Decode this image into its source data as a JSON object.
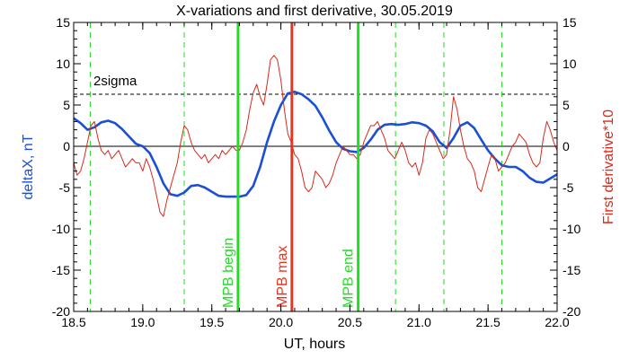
{
  "chart_data": {
    "type": "line",
    "title": "X-variations and first derivative, 30.05.2019",
    "xlabel": "UT, hours",
    "ylabel_left": "deltaX, nT",
    "ylabel_right": "First derivative*10",
    "xlim": [
      18.5,
      22.0
    ],
    "ylim": [
      -20,
      15
    ],
    "y2lim": [
      -20,
      15
    ],
    "xticks": [
      "18.5",
      "19.0",
      "19.5",
      "20.0",
      "20.5",
      "21.0",
      "21.5",
      "22.0"
    ],
    "xtick_values": [
      18.5,
      19.0,
      19.5,
      20.0,
      20.5,
      21.0,
      21.5,
      22.0
    ],
    "yticks": [
      "-20",
      "-15",
      "-10",
      "-5",
      "0",
      "5",
      "10",
      "15"
    ],
    "ytick_values": [
      -20,
      -15,
      -10,
      -5,
      0,
      5,
      10,
      15
    ],
    "grid": false,
    "colors": {
      "deltaX": "#1a4fd6",
      "derivative": "#d62a1a",
      "mpb": "#22dd22",
      "max": "#e8341c",
      "axes": "#000000"
    },
    "threshold": {
      "label": "2sigma",
      "value": 6.3
    },
    "zero_line": 0,
    "markers": [
      {
        "label": "MPB begin",
        "x": 19.69,
        "color": "#22dd22"
      },
      {
        "label": "MPB max",
        "x": 20.08,
        "color": "#e8341c"
      },
      {
        "label": "MPB end",
        "x": 20.56,
        "color": "#22dd22"
      }
    ],
    "dashed_verticals": [
      18.62,
      19.3,
      20.83,
      21.18,
      21.6
    ],
    "series": [
      {
        "name": "deltaX",
        "axis": "left",
        "x": [
          18.5,
          18.55,
          18.6,
          18.65,
          18.7,
          18.75,
          18.8,
          18.85,
          18.9,
          18.95,
          19.0,
          19.05,
          19.1,
          19.15,
          19.2,
          19.25,
          19.3,
          19.35,
          19.4,
          19.45,
          19.5,
          19.55,
          19.6,
          19.65,
          19.7,
          19.75,
          19.8,
          19.85,
          19.9,
          19.95,
          20.0,
          20.05,
          20.1,
          20.15,
          20.2,
          20.25,
          20.3,
          20.35,
          20.4,
          20.45,
          20.5,
          20.55,
          20.6,
          20.65,
          20.7,
          20.75,
          20.8,
          20.85,
          20.9,
          20.95,
          21.0,
          21.05,
          21.1,
          21.15,
          21.2,
          21.25,
          21.3,
          21.35,
          21.4,
          21.45,
          21.5,
          21.55,
          21.6,
          21.65,
          21.7,
          21.75,
          21.8,
          21.85,
          21.9,
          21.95,
          22.0
        ],
        "values": [
          3.4,
          2.8,
          2.0,
          2.3,
          2.9,
          3.1,
          2.8,
          2.1,
          1.2,
          0.3,
          0.0,
          -0.8,
          -2.5,
          -4.5,
          -5.8,
          -6.0,
          -5.6,
          -4.8,
          -4.7,
          -5.0,
          -5.5,
          -6.0,
          -6.1,
          -6.1,
          -6.1,
          -5.9,
          -4.8,
          -2.5,
          0.5,
          3.0,
          5.0,
          6.4,
          6.6,
          6.3,
          5.7,
          4.9,
          3.5,
          1.9,
          0.5,
          -0.3,
          -0.6,
          -0.7,
          -0.2,
          0.8,
          2.0,
          2.6,
          2.7,
          2.6,
          2.7,
          2.9,
          2.8,
          2.5,
          1.8,
          0.5,
          -0.2,
          1.0,
          2.5,
          2.9,
          2.2,
          0.8,
          -0.5,
          -1.5,
          -2.3,
          -2.5,
          -2.5,
          -3.0,
          -3.8,
          -4.3,
          -4.4,
          -3.9,
          -3.4
        ]
      },
      {
        "name": "First derivative*10",
        "axis": "right",
        "x": [
          18.5,
          18.525,
          18.55,
          18.575,
          18.6,
          18.625,
          18.65,
          18.675,
          18.7,
          18.725,
          18.75,
          18.775,
          18.8,
          18.825,
          18.85,
          18.875,
          18.9,
          18.925,
          18.95,
          18.975,
          19.0,
          19.025,
          19.05,
          19.075,
          19.1,
          19.125,
          19.15,
          19.175,
          19.2,
          19.225,
          19.25,
          19.275,
          19.3,
          19.325,
          19.35,
          19.375,
          19.4,
          19.425,
          19.45,
          19.475,
          19.5,
          19.525,
          19.55,
          19.575,
          19.6,
          19.625,
          19.65,
          19.675,
          19.7,
          19.725,
          19.75,
          19.775,
          19.8,
          19.825,
          19.85,
          19.875,
          19.9,
          19.925,
          19.95,
          19.975,
          20.0,
          20.025,
          20.05,
          20.075,
          20.1,
          20.125,
          20.15,
          20.175,
          20.2,
          20.225,
          20.25,
          20.275,
          20.3,
          20.325,
          20.35,
          20.375,
          20.4,
          20.425,
          20.45,
          20.475,
          20.5,
          20.525,
          20.55,
          20.575,
          20.6,
          20.625,
          20.65,
          20.675,
          20.7,
          20.725,
          20.75,
          20.775,
          20.8,
          20.825,
          20.85,
          20.875,
          20.9,
          20.925,
          20.95,
          20.975,
          21.0,
          21.025,
          21.05,
          21.075,
          21.1,
          21.125,
          21.15,
          21.175,
          21.2,
          21.225,
          21.25,
          21.275,
          21.3,
          21.325,
          21.35,
          21.375,
          21.4,
          21.425,
          21.45,
          21.475,
          21.5,
          21.525,
          21.55,
          21.575,
          21.6,
          21.625,
          21.65,
          21.675,
          21.7,
          21.725,
          21.75,
          21.775,
          21.8,
          21.825,
          21.85,
          21.875,
          21.9,
          21.925,
          21.95,
          21.975,
          22.0
        ],
        "values": [
          -2.0,
          -3.5,
          -3.0,
          -1.5,
          0.5,
          2.5,
          3.0,
          1.0,
          -0.5,
          -1.0,
          -0.5,
          -1.5,
          -1.0,
          -0.5,
          -1.5,
          -2.5,
          -2.0,
          -1.5,
          -2.0,
          -2.0,
          -3.0,
          -1.5,
          -2.5,
          -4.0,
          -6.0,
          -8.0,
          -8.5,
          -6.5,
          -5.0,
          -3.5,
          -2.0,
          0.5,
          2.5,
          2.0,
          0.5,
          -0.5,
          -1.0,
          -1.5,
          -1.0,
          -2.0,
          -1.5,
          -1.0,
          -1.5,
          -0.5,
          -1.0,
          -0.5,
          0.0,
          -0.5,
          -0.5,
          0.5,
          2.0,
          4.5,
          6.5,
          7.5,
          6.0,
          5.0,
          7.5,
          10.5,
          11.0,
          10.5,
          8.0,
          4.5,
          1.5,
          0.5,
          -1.0,
          -1.5,
          -3.0,
          -5.0,
          -5.5,
          -5.0,
          -3.0,
          -3.5,
          -4.0,
          -5.0,
          -4.5,
          -3.5,
          -2.0,
          -1.0,
          0.0,
          -0.5,
          -1.0,
          -1.0,
          -1.5,
          -1.0,
          0.5,
          1.5,
          2.5,
          2.5,
          3.0,
          2.0,
          1.0,
          -0.5,
          -1.0,
          -1.5,
          -0.5,
          0.5,
          -0.5,
          -2.0,
          -2.5,
          -2.0,
          -3.5,
          -2.0,
          1.0,
          2.0,
          1.5,
          0.5,
          -0.5,
          -1.5,
          -1.0,
          2.0,
          6.0,
          4.5,
          2.0,
          0.0,
          -1.5,
          -2.0,
          -3.0,
          -5.0,
          -5.5,
          -4.0,
          -2.5,
          -1.0,
          -1.5,
          -3.0,
          -2.5,
          -2.0,
          -1.0,
          0.0,
          0.5,
          1.5,
          1.0,
          0.5,
          -1.0,
          -2.0,
          -2.5,
          -2.0,
          1.0,
          3.0,
          2.0,
          0.5,
          -0.5
        ]
      }
    ]
  }
}
